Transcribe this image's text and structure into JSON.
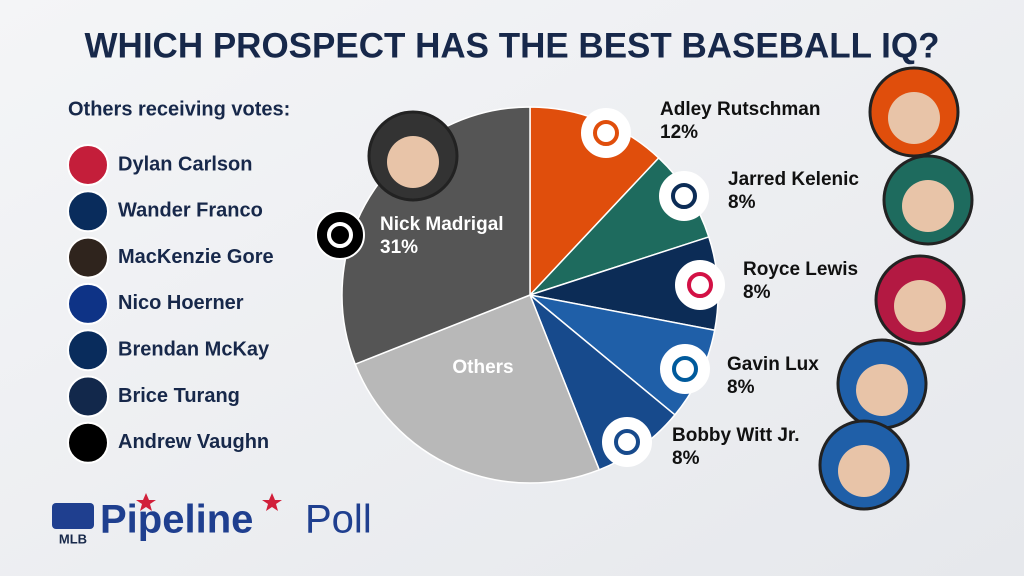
{
  "chart_data": {
    "type": "pie",
    "title": "WHICH PROSPECT HAS THE BEST BASEBALL IQ?",
    "categories": [
      "Adley Rutschman",
      "Jarred Kelenic",
      "Royce Lewis",
      "Gavin Lux",
      "Bobby Witt Jr.",
      "Others",
      "Nick Madrigal"
    ],
    "values": [
      12,
      8,
      8,
      8,
      8,
      25,
      31
    ],
    "value_labels": [
      "12%",
      "8%",
      "8%",
      "8%",
      "8%",
      null,
      "31%"
    ],
    "colors": [
      "#e04e0c",
      "#1e6b5e",
      "#0c2c56",
      "#1f5fa8",
      "#174a8c",
      "#b8b8b8",
      "#555555"
    ]
  },
  "others_list": {
    "heading": "Others receiving votes:",
    "names": [
      "Dylan Carlson",
      "Wander Franco",
      "MacKenzie Gore",
      "Nico Hoerner",
      "Brendan McKay",
      "Brice Turang",
      "Andrew Vaughn"
    ]
  },
  "footer": {
    "brand": "MLB",
    "name": "Pipeline",
    "word": "Poll"
  }
}
